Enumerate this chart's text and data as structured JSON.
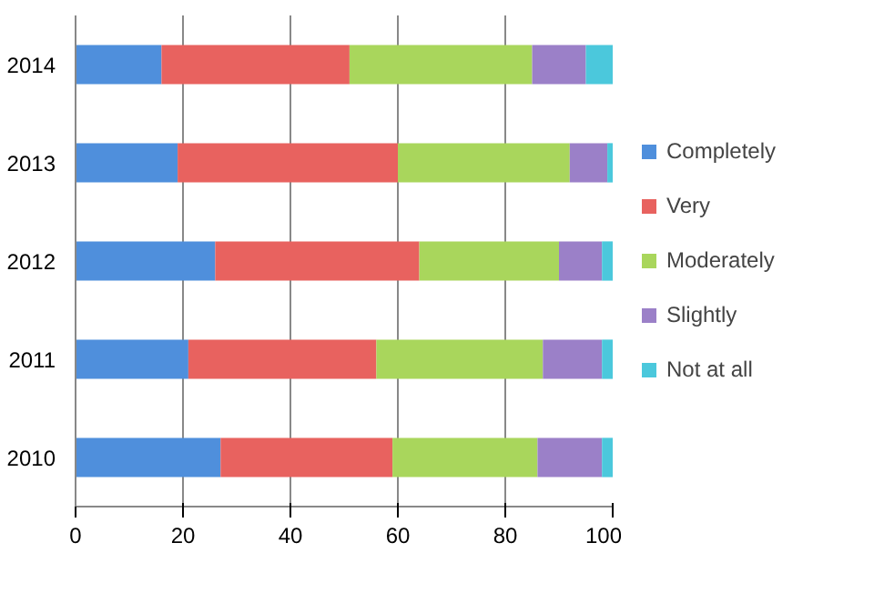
{
  "chart_data": {
    "type": "bar",
    "orientation": "horizontal",
    "stacked": true,
    "categories": [
      "2014",
      "2013",
      "2012",
      "2011",
      "2010"
    ],
    "series": [
      {
        "name": "Completely",
        "color": "#4f8fdc",
        "values": [
          16,
          19,
          26,
          21,
          27
        ]
      },
      {
        "name": "Very",
        "color": "#e8625f",
        "values": [
          35,
          41,
          38,
          35,
          32
        ]
      },
      {
        "name": "Moderately",
        "color": "#a9d65c",
        "values": [
          34,
          32,
          26,
          31,
          27
        ]
      },
      {
        "name": "Slightly",
        "color": "#9b80c8",
        "values": [
          10,
          7,
          8,
          11,
          12
        ]
      },
      {
        "name": "Not at all",
        "color": "#4bc8dc",
        "values": [
          5,
          1,
          2,
          2,
          2
        ]
      }
    ],
    "xlim": [
      0,
      100
    ],
    "xticks": [
      0,
      20,
      40,
      60,
      80,
      100
    ],
    "grid": "x",
    "legend": "right"
  }
}
